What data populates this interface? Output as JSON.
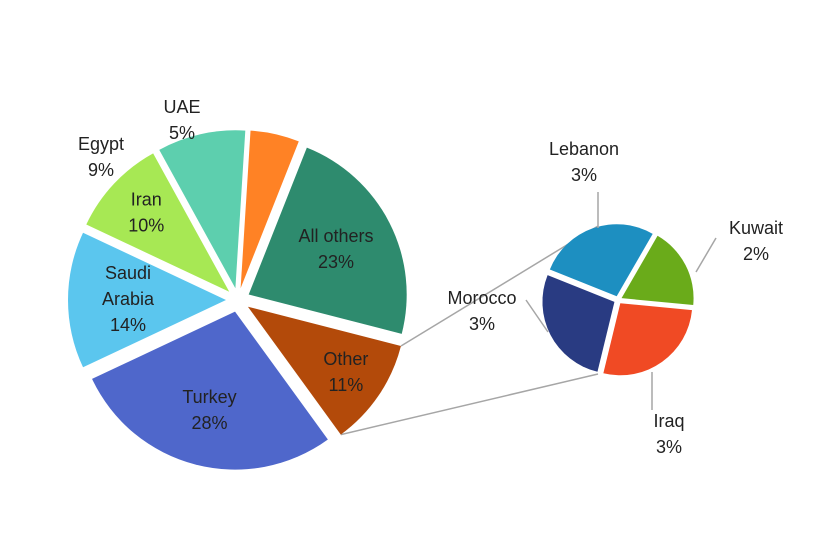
{
  "chart_data": {
    "type": "pie",
    "subtype": "pie-of-pie",
    "main_pie": {
      "slices": [
        {
          "label": "All others",
          "value": 23,
          "value_label": "23%",
          "color": "#2E8B6E"
        },
        {
          "label": "Other",
          "value": 11,
          "value_label": "11%",
          "color": "#B34A0A"
        },
        {
          "label": "Turkey",
          "value": 28,
          "value_label": "28%",
          "color": "#4F67CB"
        },
        {
          "label": "Saudi Arabia",
          "label_lines": [
            "Saudi",
            "Arabia"
          ],
          "value": 14,
          "value_label": "14%",
          "color": "#5BC6EE"
        },
        {
          "label": "Iran",
          "value": 10,
          "value_label": "10%",
          "color": "#A7E854"
        },
        {
          "label": "Egypt",
          "value": 9,
          "value_label": "9%",
          "color": "#5DCFAE"
        },
        {
          "label": "UAE",
          "value": 5,
          "value_label": "5%",
          "color": "#FF8225"
        }
      ]
    },
    "secondary_pie": {
      "parent_slice": "Other",
      "slices": [
        {
          "label": "Kuwait",
          "value": 2,
          "value_label": "2%",
          "color": "#6AAB1A"
        },
        {
          "label": "Iraq",
          "value": 3,
          "value_label": "3%",
          "color": "#F04A24"
        },
        {
          "label": "Morocco",
          "value": 3,
          "value_label": "3%",
          "color": "#293B82"
        },
        {
          "label": "Lebanon",
          "value": 3,
          "value_label": "3%",
          "color": "#1D8FC1"
        }
      ]
    },
    "connector_color": "#A6A6A6",
    "legend": "none"
  }
}
